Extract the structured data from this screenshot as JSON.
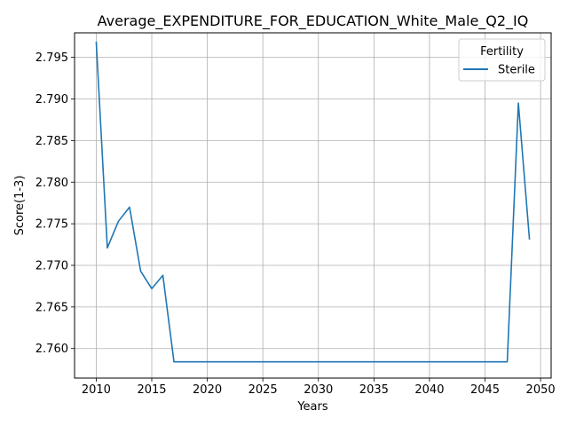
{
  "chart_data": {
    "type": "line",
    "title": "Average_EXPENDITURE_FOR_EDUCATION_White_Male_Q2_IQ",
    "xlabel": "Years",
    "ylabel": "Score(1-3)",
    "xlim": [
      2008.05,
      2050.95
    ],
    "ylim": [
      2.75645,
      2.79795
    ],
    "xticks": [
      2010,
      2015,
      2020,
      2025,
      2030,
      2035,
      2040,
      2045,
      2050
    ],
    "yticks": [
      2.76,
      2.765,
      2.77,
      2.775,
      2.78,
      2.785,
      2.79,
      2.795
    ],
    "grid": true,
    "legend": {
      "title": "Fertility",
      "placement": "top-right"
    },
    "series": [
      {
        "name": "Sterile",
        "color": "#1f77b4",
        "x": [
          2010,
          2011,
          2012,
          2013,
          2014,
          2015,
          2016,
          2017,
          2018,
          2019,
          2020,
          2021,
          2022,
          2023,
          2024,
          2025,
          2026,
          2027,
          2028,
          2029,
          2030,
          2031,
          2032,
          2033,
          2034,
          2035,
          2036,
          2037,
          2038,
          2039,
          2040,
          2041,
          2042,
          2043,
          2044,
          2045,
          2046,
          2047,
          2048,
          2049
        ],
        "y": [
          2.7969,
          2.7721,
          2.7753,
          2.777,
          2.7693,
          2.7672,
          2.7688,
          2.7584,
          2.7584,
          2.7584,
          2.7584,
          2.7584,
          2.7584,
          2.7584,
          2.7584,
          2.7584,
          2.7584,
          2.7584,
          2.7584,
          2.7584,
          2.7584,
          2.7584,
          2.7584,
          2.7584,
          2.7584,
          2.7584,
          2.7584,
          2.7584,
          2.7584,
          2.7584,
          2.7584,
          2.7584,
          2.7584,
          2.7584,
          2.7584,
          2.7584,
          2.7584,
          2.7584,
          2.7895,
          2.7731
        ]
      }
    ]
  }
}
